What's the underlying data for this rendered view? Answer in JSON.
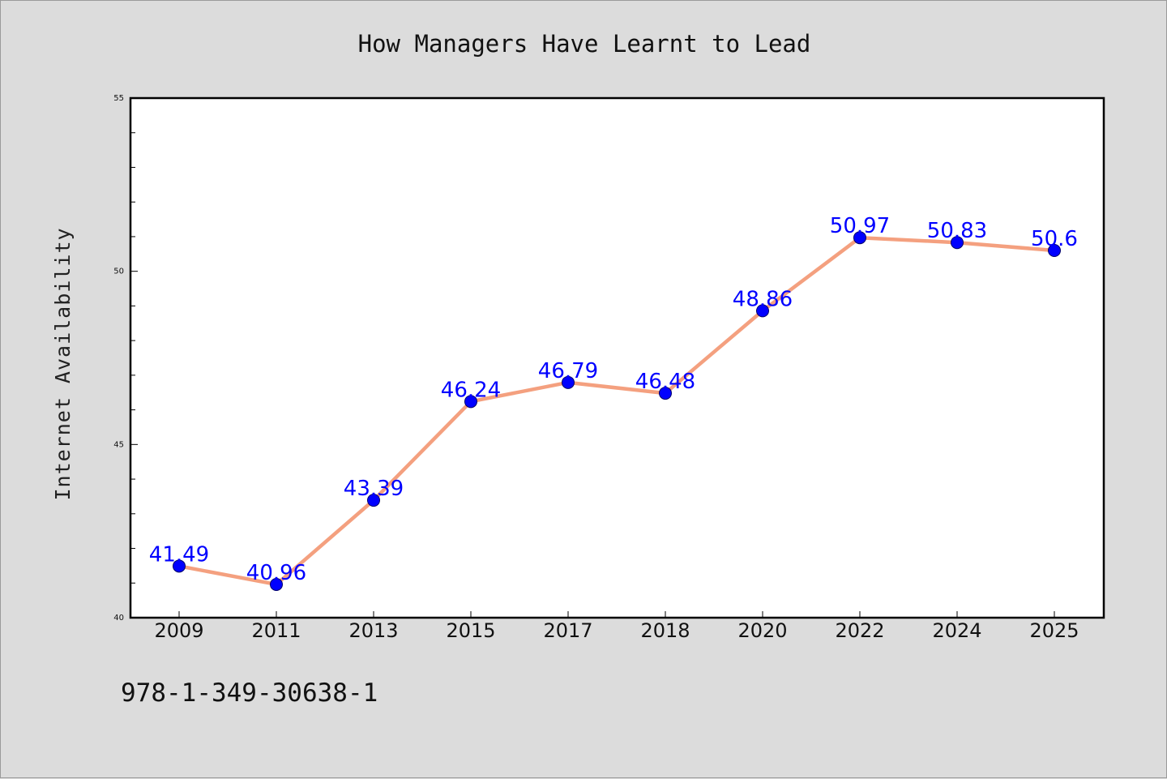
{
  "chart_data": {
    "type": "line",
    "title": "How Managers Have Learnt to Lead",
    "xlabel": "",
    "ylabel": "Internet Availability",
    "categories": [
      "2009",
      "2011",
      "2013",
      "2015",
      "2017",
      "2018",
      "2020",
      "2022",
      "2024",
      "2025"
    ],
    "series": [
      {
        "values": [
          41.49,
          40.96,
          43.39,
          46.24,
          46.79,
          46.48,
          48.86,
          50.97,
          50.83,
          50.6
        ],
        "labels": [
          "41.49",
          "40.96",
          "43.39",
          "46.24",
          "46.79",
          "46.48",
          "48.86",
          "50.97",
          "50.83",
          "50.6"
        ]
      }
    ],
    "ylim": [
      40,
      55
    ],
    "yticks": [
      "40",
      "45",
      "50",
      "55"
    ],
    "grid": false,
    "legend": "none",
    "line_color": "#f4a07f",
    "marker_color": "#0000ff",
    "label_color": "#0000ff"
  },
  "footer": {
    "code": "978-1-349-30638-1"
  }
}
